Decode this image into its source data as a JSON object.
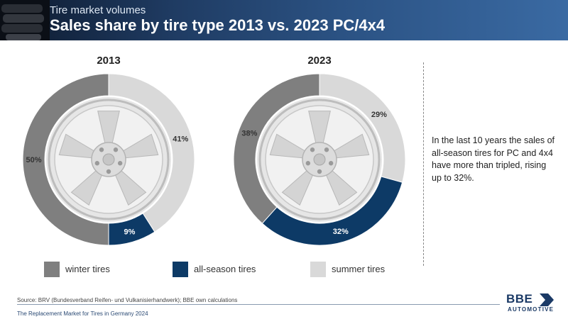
{
  "header": {
    "kicker": "Tire market volumes",
    "title": "Sales share by tire type 2013 vs. 2023 PC/4x4"
  },
  "colors": {
    "winter": "#7f7f7f",
    "all_season": "#0d3a66",
    "summer": "#d9d9d9",
    "header_bg": "#1f3b62"
  },
  "chart_data": [
    {
      "type": "pie",
      "title": "2013",
      "slices": [
        {
          "label": "summer tires",
          "value": 41,
          "display": "41%"
        },
        {
          "label": "all-season tires",
          "value": 9,
          "display": "9%"
        },
        {
          "label": "winter tires",
          "value": 50,
          "display": "50%"
        }
      ]
    },
    {
      "type": "pie",
      "title": "2023",
      "slices": [
        {
          "label": "summer tires",
          "value": 29,
          "display": "29%"
        },
        {
          "label": "all-season tires",
          "value": 32,
          "display": "32%"
        },
        {
          "label": "winter tires",
          "value": 38,
          "display": "38%"
        }
      ]
    }
  ],
  "legend": [
    {
      "label": "winter tires",
      "color": "#7f7f7f"
    },
    {
      "label": "all-season tires",
      "color": "#0d3a66"
    },
    {
      "label": "summer tires",
      "color": "#d9d9d9"
    }
  ],
  "note": "In the last 10 years the sales of all-season tires for PC and 4x4 have more than tripled, rising up to 32%.",
  "source": "Source: BRV (Bundesverband Reifen- und Vulkanisierhandwerk); BBE own calculations",
  "footer": "The Replacement Market for Tires in Germany 2024",
  "logo": {
    "name": "BBE",
    "sub": "AUTOMOTIVE"
  }
}
